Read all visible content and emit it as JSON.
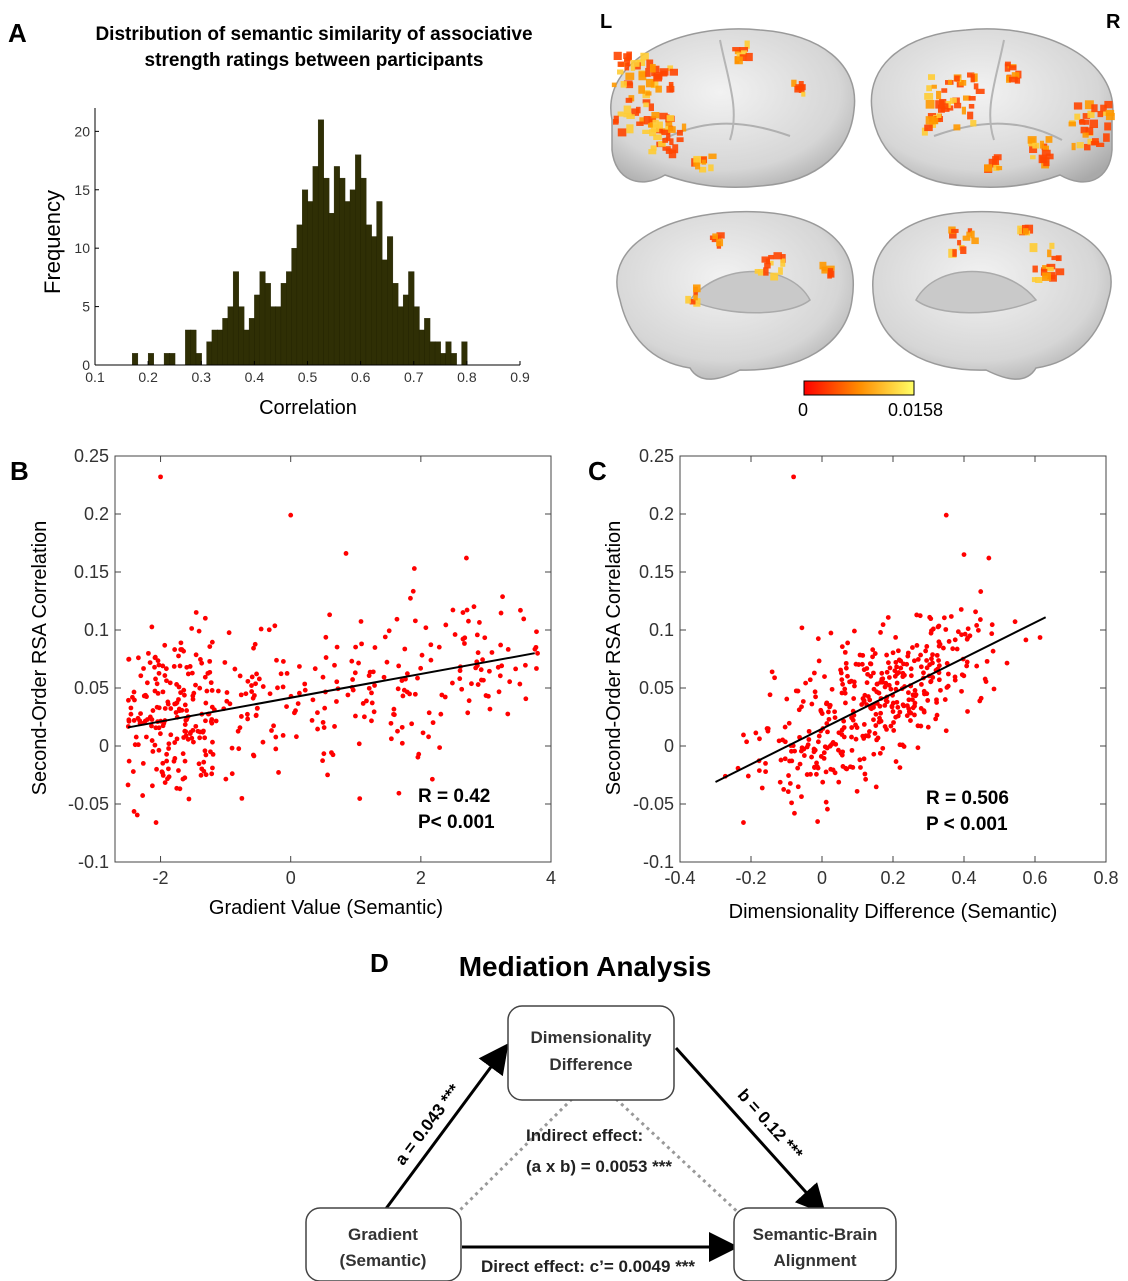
{
  "panels": {
    "a": "A",
    "b": "B",
    "c": "C",
    "d": "D"
  },
  "colors": {
    "histogram_bar": "#2f2f05",
    "scatter_point": "#ff0000",
    "fit_line": "#000000",
    "brain_surface": "#d8d8d8",
    "colormap_low": "#ff0000",
    "colormap_high": "#ffff66"
  },
  "brain": {
    "left_label": "L",
    "right_label": "R",
    "colorbar_min": "0",
    "colorbar_max": "0.0158"
  },
  "mediation": {
    "title": "Mediation Analysis",
    "box_top_line1": "Dimensionality",
    "box_top_line2": "Difference",
    "box_left_line1": "Gradient",
    "box_left_line2": "(Semantic)",
    "box_right_line1": "Semantic-Brain",
    "box_right_line2": "Alignment",
    "path_a": "a = 0.043 ***",
    "path_b": "b = 0.12 ***",
    "indirect_line1": "Indirect effect:",
    "indirect_line2": "(a x b) = 0.0053 ***",
    "direct": "Direct effect:  c’= 0.0049 ***"
  },
  "chart_data": [
    {
      "type": "bar",
      "title_line1": "Distribution of semantic similarity of associative",
      "title_line2": "strength ratings between participants",
      "xlabel": "Correlation",
      "ylabel": "Frequency",
      "xlim": [
        0.1,
        0.9
      ],
      "ylim": [
        0,
        22
      ],
      "xticks": [
        "0.1",
        "0.2",
        "0.3",
        "0.4",
        "0.5",
        "0.6",
        "0.7",
        "0.8",
        "0.9"
      ],
      "yticks": [
        "0",
        "5",
        "10",
        "15",
        "20"
      ],
      "bin_start": 0.17,
      "bin_width": 0.01,
      "values": [
        1,
        0,
        0,
        1,
        0,
        0,
        1,
        1,
        0,
        0,
        3,
        3,
        1,
        0,
        2,
        3,
        3,
        4,
        5,
        8,
        5,
        3,
        4,
        6,
        8,
        7,
        5,
        5,
        7,
        8,
        10,
        12,
        15,
        14,
        17,
        21,
        16,
        13,
        17,
        16,
        14,
        15,
        18,
        16,
        12,
        11,
        14,
        9,
        11,
        7,
        5,
        6,
        8,
        5,
        3,
        4,
        2,
        2,
        1,
        2,
        1,
        0,
        2
      ],
      "grid": false
    },
    {
      "type": "scatter",
      "xlabel": "Gradient Value (Semantic)",
      "ylabel": "Second-Order RSA Correlation",
      "xlim": [
        -2.7,
        4
      ],
      "ylim": [
        -0.1,
        0.25
      ],
      "xticks": [
        "-2",
        "0",
        "2",
        "4"
      ],
      "yticks": [
        "-0.1",
        "-0.05",
        "0",
        "0.05",
        "0.1",
        "0.15",
        "0.2",
        "0.25"
      ],
      "annotation_line1": "R = 0.42",
      "annotation_line2": "P< 0.001",
      "fit": {
        "x": [
          -2.5,
          3.75
        ],
        "y": [
          0.016,
          0.08
        ]
      },
      "n_points": 420,
      "x_range": [
        -2.5,
        3.8
      ],
      "slope": 0.0102,
      "intercept": 0.0416,
      "residual_sd": 0.035,
      "outliers": [
        [
          -2.0,
          0.232
        ],
        [
          0.0,
          0.199
        ],
        [
          0.85,
          0.166
        ],
        [
          2.7,
          0.162
        ],
        [
          1.9,
          0.153
        ]
      ],
      "grid": false
    },
    {
      "type": "scatter",
      "xlabel": "Dimensionality Difference (Semantic)",
      "ylabel": "Second-Order RSA Correlation",
      "xlim": [
        -0.4,
        0.8
      ],
      "ylim": [
        -0.1,
        0.25
      ],
      "xticks": [
        "-0.4",
        "-0.2",
        "0",
        "0.2",
        "0.4",
        "0.6",
        "0.8"
      ],
      "yticks": [
        "-0.1",
        "-0.05",
        "0",
        "0.05",
        "0.1",
        "0.15",
        "0.2",
        "0.25"
      ],
      "annotation_line1": "R = 0.506",
      "annotation_line2": "P < 0.001",
      "fit": {
        "x": [
          -0.3,
          0.63
        ],
        "y": [
          -0.031,
          0.111
        ]
      },
      "n_points": 420,
      "x_center": 0.15,
      "x_sd": 0.17,
      "x_range": [
        -0.3,
        0.63
      ],
      "slope": 0.153,
      "intercept": 0.0149,
      "residual_sd": 0.03,
      "outliers": [
        [
          -0.08,
          0.232
        ],
        [
          0.35,
          0.199
        ],
        [
          0.4,
          0.165
        ],
        [
          0.47,
          0.162
        ]
      ],
      "grid": false
    }
  ]
}
